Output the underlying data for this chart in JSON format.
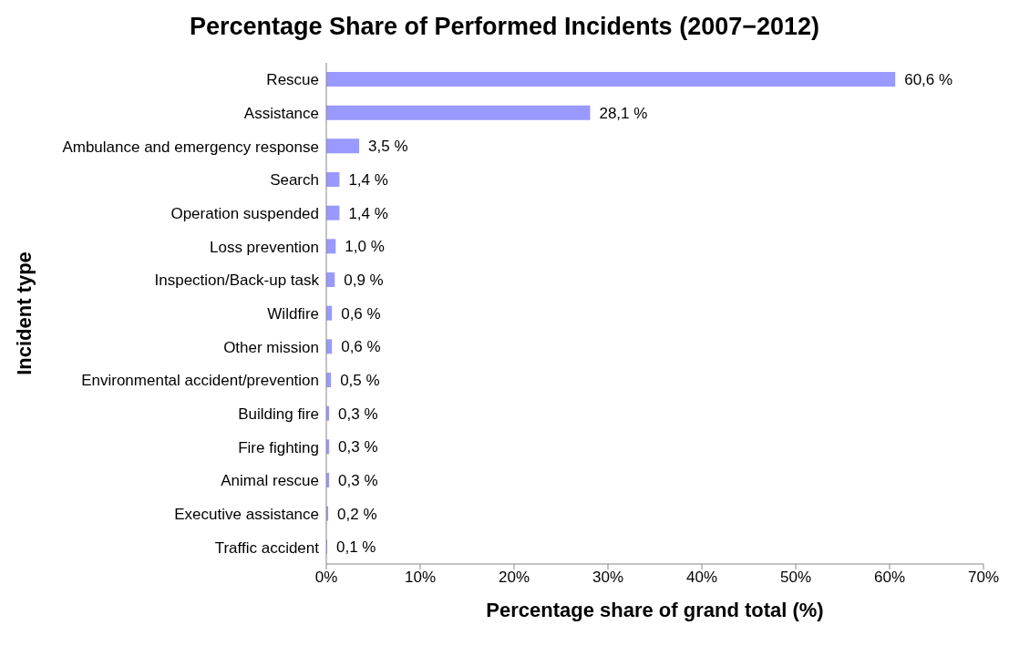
{
  "chart_data": {
    "type": "bar",
    "orientation": "horizontal",
    "title": "Percentage Share of Performed Incidents (2007−2012)",
    "xlabel": "Percentage share of grand total (%)",
    "ylabel": "Incident type",
    "categories": [
      "Rescue",
      "Assistance",
      "Ambulance and emergency response",
      "Search",
      "Operation suspended",
      "Loss prevention",
      "Inspection/Back-up task",
      "Wildfire",
      "Other mission",
      "Environmental accident/prevention",
      "Building fire",
      "Fire fighting",
      "Animal rescue",
      "Executive assistance",
      "Traffic accident"
    ],
    "values": [
      60.6,
      28.1,
      3.5,
      1.4,
      1.4,
      1.0,
      0.9,
      0.6,
      0.6,
      0.5,
      0.3,
      0.3,
      0.3,
      0.2,
      0.1
    ],
    "value_labels": [
      "60,6 %",
      "28,1 %",
      "3,5 %",
      "1,4 %",
      "1,4 %",
      "1,0 %",
      "0,9 %",
      "0,6 %",
      "0,6 %",
      "0,5 %",
      "0,3 %",
      "0,3 %",
      "0,3 %",
      "0,2 %",
      "0,1 %"
    ],
    "color": "#9999ff",
    "xlim": [
      0,
      70
    ],
    "xticks": [
      {
        "value": 0,
        "label": "0%"
      },
      {
        "value": 10,
        "label": "10%"
      },
      {
        "value": 20,
        "label": "20%"
      },
      {
        "value": 30,
        "label": "30%"
      },
      {
        "value": 40,
        "label": "40%"
      },
      {
        "value": 50,
        "label": "50%"
      },
      {
        "value": 60,
        "label": "60%"
      },
      {
        "value": 70,
        "label": "70%"
      }
    ]
  }
}
